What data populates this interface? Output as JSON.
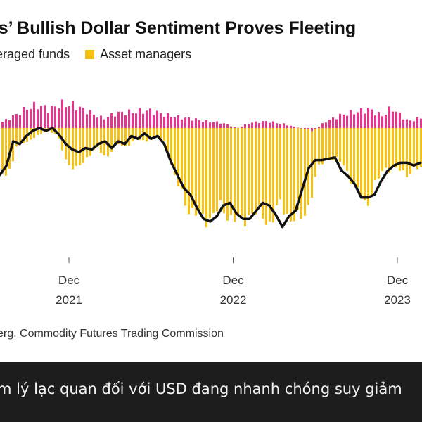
{
  "title": "rs’ Bullish Dollar Sentiment Proves Fleeting",
  "legend": [
    {
      "label": "eraged funds",
      "color": "#e8338f"
    },
    {
      "label": "Asset managers",
      "color": "#f6c20f"
    }
  ],
  "source": "erg, Commodity Futures Trading Commission",
  "caption": "m lý lạc quan đối với USD đang nhanh chóng suy giảm",
  "colors": {
    "leveraged": "#e8338f",
    "asset": "#f6c20f",
    "net": "#111111"
  },
  "chart_data": {
    "type": "bar",
    "x_ticks": [
      {
        "month": "Dec",
        "year": "2021",
        "x": 2021.92
      },
      {
        "month": "Dec",
        "year": "2022",
        "x": 2022.92
      },
      {
        "month": "Dec",
        "year": "2023",
        "x": 2023.92
      }
    ],
    "xlim": [
      2021.5,
      2024.07
    ],
    "ylim": [
      -1.0,
      0.25
    ],
    "series": [
      {
        "name": "eraged funds",
        "type": "bar",
        "points": [
          [
            2021.5,
            0.04
          ],
          [
            2021.58,
            0.09
          ],
          [
            2021.66,
            0.15
          ],
          [
            2021.72,
            0.17
          ],
          [
            2021.8,
            0.14
          ],
          [
            2021.86,
            0.18
          ],
          [
            2021.94,
            0.17
          ],
          [
            2022.02,
            0.13
          ],
          [
            2022.12,
            0.07
          ],
          [
            2022.2,
            0.11
          ],
          [
            2022.3,
            0.12
          ],
          [
            2022.4,
            0.13
          ],
          [
            2022.5,
            0.1
          ],
          [
            2022.58,
            0.08
          ],
          [
            2022.66,
            0.07
          ],
          [
            2022.74,
            0.05
          ],
          [
            2022.84,
            0.04
          ],
          [
            2022.94,
            0.0
          ],
          [
            2023.02,
            0.04
          ],
          [
            2023.12,
            0.05
          ],
          [
            2023.22,
            0.03
          ],
          [
            2023.32,
            0.0
          ],
          [
            2023.4,
            -0.02
          ],
          [
            2023.48,
            0.05
          ],
          [
            2023.58,
            0.1
          ],
          [
            2023.66,
            0.12
          ],
          [
            2023.74,
            0.14
          ],
          [
            2023.82,
            0.09
          ],
          [
            2023.88,
            0.15
          ],
          [
            2023.98,
            0.05
          ],
          [
            2024.07,
            0.08
          ]
        ]
      },
      {
        "name": "Asset managers",
        "type": "bar",
        "points": [
          [
            2021.5,
            -0.35
          ],
          [
            2021.56,
            -0.3
          ],
          [
            2021.6,
            -0.12
          ],
          [
            2021.66,
            -0.1
          ],
          [
            2021.72,
            -0.06
          ],
          [
            2021.78,
            -0.02
          ],
          [
            2021.84,
            -0.05
          ],
          [
            2021.9,
            -0.25
          ],
          [
            2021.96,
            -0.32
          ],
          [
            2022.02,
            -0.22
          ],
          [
            2022.08,
            -0.15
          ],
          [
            2022.14,
            -0.22
          ],
          [
            2022.2,
            -0.12
          ],
          [
            2022.26,
            -0.14
          ],
          [
            2022.32,
            -0.08
          ],
          [
            2022.38,
            -0.1
          ],
          [
            2022.44,
            -0.06
          ],
          [
            2022.5,
            -0.1
          ],
          [
            2022.56,
            -0.38
          ],
          [
            2022.62,
            -0.55
          ],
          [
            2022.68,
            -0.65
          ],
          [
            2022.72,
            -0.68
          ],
          [
            2022.78,
            -0.66
          ],
          [
            2022.84,
            -0.6
          ],
          [
            2022.9,
            -0.66
          ],
          [
            2022.96,
            -0.72
          ],
          [
            2023.02,
            -0.62
          ],
          [
            2023.08,
            -0.66
          ],
          [
            2023.14,
            -0.7
          ],
          [
            2023.2,
            -0.58
          ],
          [
            2023.26,
            -0.66
          ],
          [
            2023.32,
            -0.7
          ],
          [
            2023.36,
            -0.62
          ],
          [
            2023.44,
            -0.28
          ],
          [
            2023.5,
            -0.22
          ],
          [
            2023.56,
            -0.25
          ],
          [
            2023.6,
            -0.3
          ],
          [
            2023.66,
            -0.45
          ],
          [
            2023.72,
            -0.58
          ],
          [
            2023.78,
            -0.42
          ],
          [
            2023.84,
            -0.3
          ],
          [
            2023.9,
            -0.3
          ],
          [
            2023.96,
            -0.35
          ],
          [
            2024.02,
            -0.3
          ],
          [
            2024.07,
            -0.32
          ]
        ]
      },
      {
        "name": "Net",
        "type": "line",
        "points": [
          [
            2021.5,
            -0.35
          ],
          [
            2021.54,
            -0.28
          ],
          [
            2021.58,
            -0.1
          ],
          [
            2021.62,
            -0.12
          ],
          [
            2021.66,
            -0.06
          ],
          [
            2021.7,
            -0.02
          ],
          [
            2021.74,
            0.0
          ],
          [
            2021.78,
            -0.02
          ],
          [
            2021.82,
            0.0
          ],
          [
            2021.86,
            -0.05
          ],
          [
            2021.9,
            -0.12
          ],
          [
            2021.94,
            -0.16
          ],
          [
            2021.98,
            -0.18
          ],
          [
            2022.02,
            -0.15
          ],
          [
            2022.06,
            -0.16
          ],
          [
            2022.1,
            -0.12
          ],
          [
            2022.14,
            -0.1
          ],
          [
            2022.18,
            -0.15
          ],
          [
            2022.22,
            -0.1
          ],
          [
            2022.26,
            -0.12
          ],
          [
            2022.3,
            -0.06
          ],
          [
            2022.34,
            -0.08
          ],
          [
            2022.38,
            -0.04
          ],
          [
            2022.42,
            -0.08
          ],
          [
            2022.46,
            -0.06
          ],
          [
            2022.5,
            -0.12
          ],
          [
            2022.54,
            -0.25
          ],
          [
            2022.58,
            -0.35
          ],
          [
            2022.62,
            -0.45
          ],
          [
            2022.66,
            -0.5
          ],
          [
            2022.7,
            -0.6
          ],
          [
            2022.74,
            -0.68
          ],
          [
            2022.78,
            -0.7
          ],
          [
            2022.82,
            -0.66
          ],
          [
            2022.86,
            -0.58
          ],
          [
            2022.9,
            -0.56
          ],
          [
            2022.94,
            -0.64
          ],
          [
            2022.98,
            -0.68
          ],
          [
            2023.02,
            -0.68
          ],
          [
            2023.06,
            -0.62
          ],
          [
            2023.1,
            -0.56
          ],
          [
            2023.14,
            -0.58
          ],
          [
            2023.18,
            -0.65
          ],
          [
            2023.22,
            -0.74
          ],
          [
            2023.26,
            -0.66
          ],
          [
            2023.3,
            -0.62
          ],
          [
            2023.34,
            -0.46
          ],
          [
            2023.38,
            -0.3
          ],
          [
            2023.42,
            -0.24
          ],
          [
            2023.46,
            -0.24
          ],
          [
            2023.5,
            -0.23
          ],
          [
            2023.54,
            -0.22
          ],
          [
            2023.58,
            -0.32
          ],
          [
            2023.62,
            -0.36
          ],
          [
            2023.66,
            -0.42
          ],
          [
            2023.7,
            -0.52
          ],
          [
            2023.74,
            -0.52
          ],
          [
            2023.78,
            -0.5
          ],
          [
            2023.82,
            -0.4
          ],
          [
            2023.86,
            -0.32
          ],
          [
            2023.9,
            -0.28
          ],
          [
            2023.94,
            -0.26
          ],
          [
            2023.98,
            -0.26
          ],
          [
            2024.02,
            -0.28
          ],
          [
            2024.06,
            -0.26
          ]
        ]
      }
    ]
  }
}
